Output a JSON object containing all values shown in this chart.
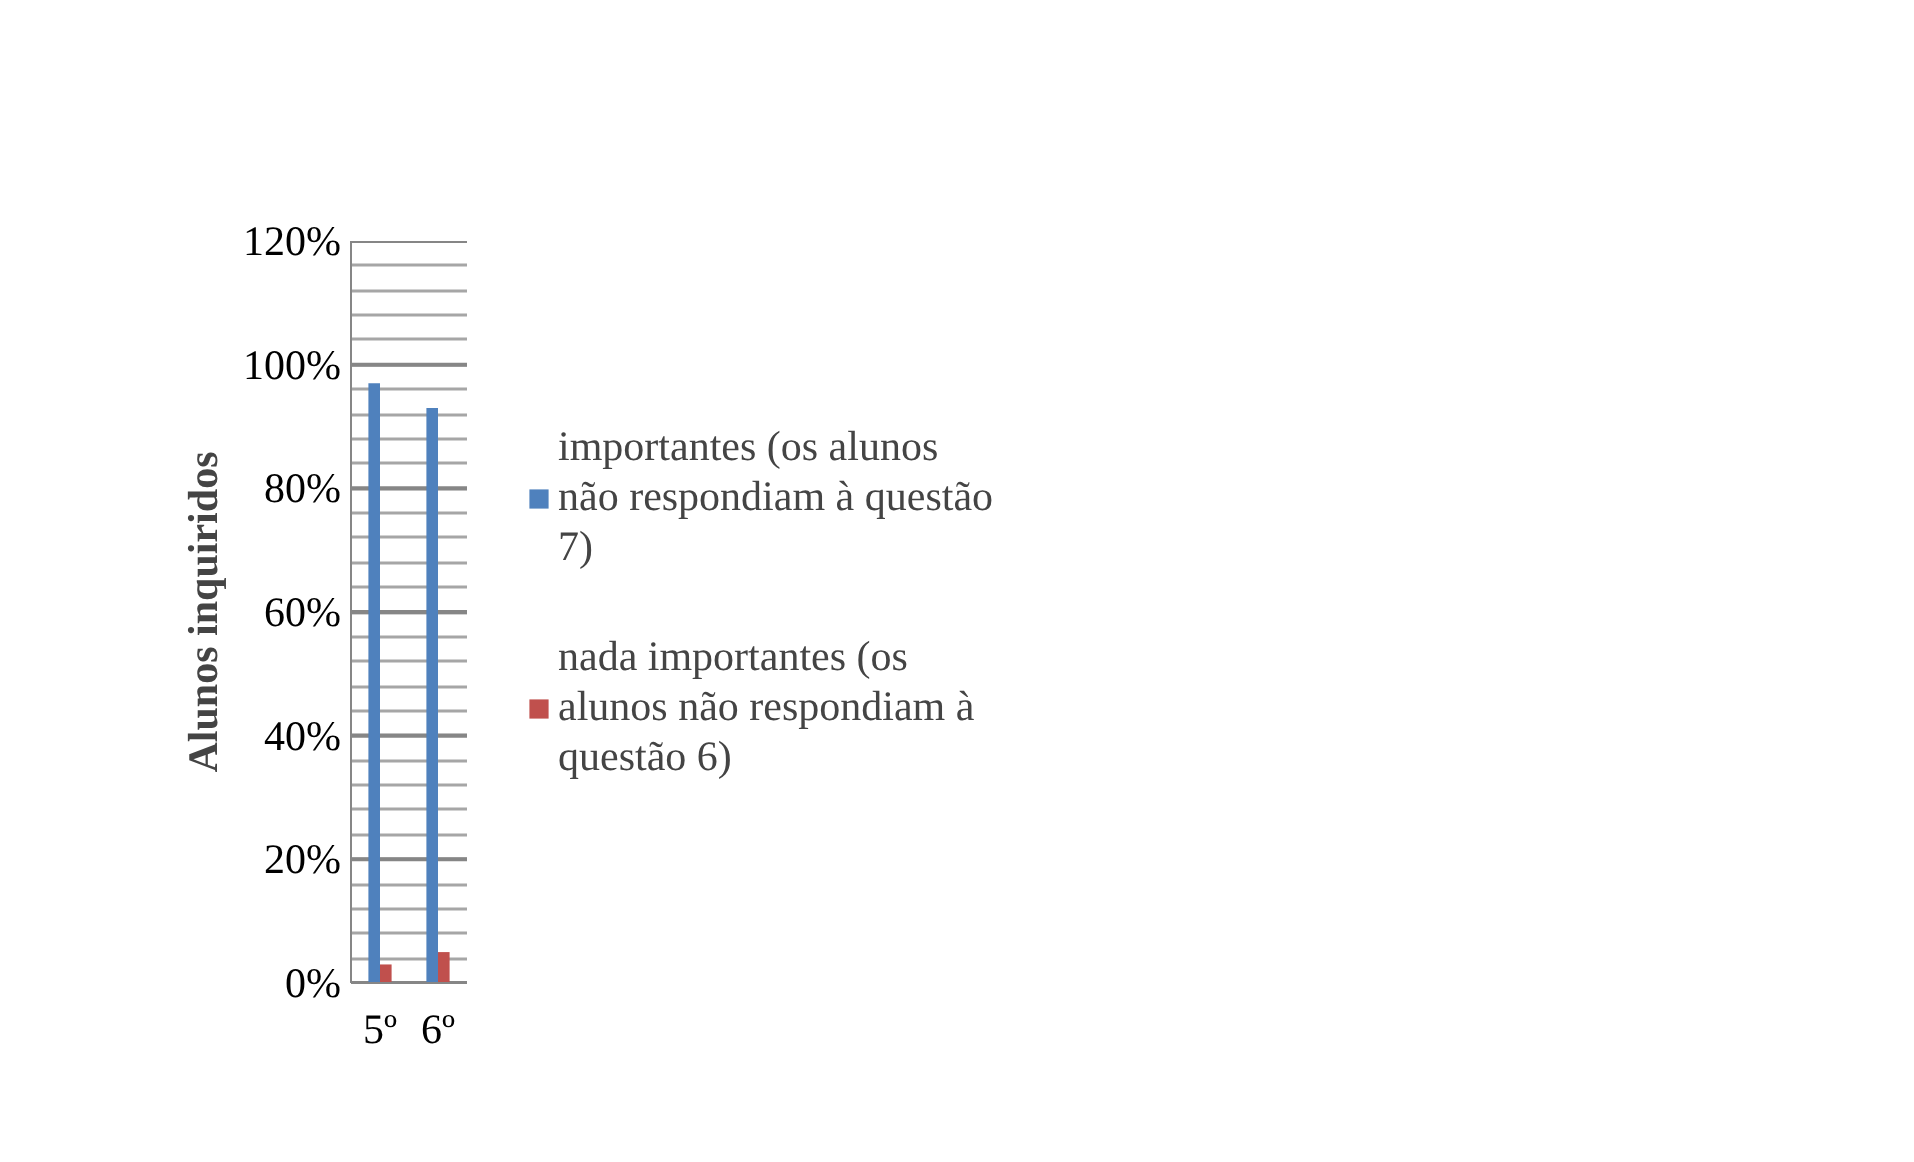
{
  "chart_data": {
    "type": "bar",
    "ylabel": "Alunos inquiridos",
    "categories": [
      "5º",
      "6º"
    ],
    "series": [
      {
        "name": "importantes (os alunos não respondiam à questão 7)",
        "color": "#4f81bd",
        "values": [
          97,
          93
        ]
      },
      {
        "name": "nada importantes (os alunos não respondiam à questão 6)",
        "color": "#c0504d",
        "values": [
          3,
          5
        ]
      }
    ],
    "ylim": [
      0,
      120
    ],
    "yticks": [
      {
        "value": 0,
        "label": "0%"
      },
      {
        "value": 4,
        "label": null
      },
      {
        "value": 8,
        "label": null
      },
      {
        "value": 12,
        "label": null
      },
      {
        "value": 16,
        "label": null
      },
      {
        "value": 20,
        "label": "20%"
      },
      {
        "value": 24,
        "label": null
      },
      {
        "value": 28,
        "label": null
      },
      {
        "value": 32,
        "label": null
      },
      {
        "value": 36,
        "label": null
      },
      {
        "value": 40,
        "label": "40%"
      },
      {
        "value": 44,
        "label": null
      },
      {
        "value": 48,
        "label": null
      },
      {
        "value": 52,
        "label": null
      },
      {
        "value": 56,
        "label": null
      },
      {
        "value": 60,
        "label": "60%"
      },
      {
        "value": 64,
        "label": null
      },
      {
        "value": 68,
        "label": null
      },
      {
        "value": 72,
        "label": null
      },
      {
        "value": 76,
        "label": null
      },
      {
        "value": 80,
        "label": "80%"
      },
      {
        "value": 84,
        "label": null
      },
      {
        "value": 88,
        "label": null
      },
      {
        "value": 92,
        "label": null
      },
      {
        "value": 96,
        "label": null
      },
      {
        "value": 100,
        "label": "100%"
      },
      {
        "value": 104,
        "label": null
      },
      {
        "value": 108,
        "label": null
      },
      {
        "value": 112,
        "label": null
      },
      {
        "value": 116,
        "label": null
      },
      {
        "value": 120,
        "label": "120%"
      }
    ],
    "grid": "y",
    "legend": "right"
  }
}
